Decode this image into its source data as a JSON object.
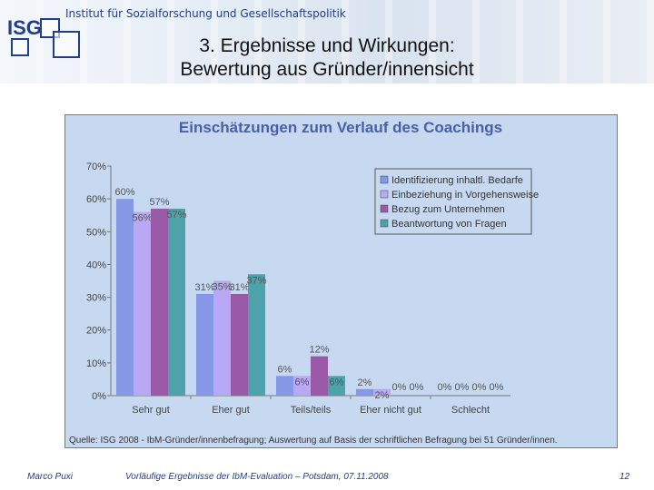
{
  "header": {
    "logo": "ISG",
    "institute": "Institut für Sozialforschung und Gesellschaftspolitik",
    "title_line1": "3. Ergebnisse und Wirkungen:",
    "title_line2": "Bewertung aus Gründer/innensicht"
  },
  "chart_data": {
    "type": "bar",
    "title": "Einschätzungen zum Verlauf des Coachings",
    "categories": [
      "Sehr gut",
      "Eher gut",
      "Teils/teils",
      "Eher nicht gut",
      "Schlecht"
    ],
    "series": [
      {
        "name": "Identifizierung inhaltl. Bedarfe",
        "values": [
          60,
          31,
          6,
          2,
          0
        ],
        "color": "#8797e8"
      },
      {
        "name": "Einbeziehung in Vorgehensweise",
        "values": [
          56,
          35,
          6,
          2,
          0
        ],
        "color": "#b9a8f4"
      },
      {
        "name": "Bezug zum Unternehmen",
        "values": [
          57,
          31,
          12,
          0,
          0
        ],
        "color": "#9b5aa8"
      },
      {
        "name": "Beantwortung von Fragen",
        "values": [
          57,
          37,
          6,
          0,
          0
        ],
        "color": "#4ea2aa"
      }
    ],
    "ylim": [
      0,
      70
    ],
    "yticks": [
      "0%",
      "10%",
      "20%",
      "30%",
      "40%",
      "50%",
      "60%",
      "70%"
    ],
    "value_suffix": "%",
    "legend_position": "top-right",
    "source": "Quelle: ISG 2008 - IbM-Gründer/innenbefragung; Auswertung auf Basis der schriftlichen Befragung bei 51 Gründer/innen."
  },
  "footer": {
    "author": "Marco Puxi",
    "caption": "Vorläufige Ergebnisse der IbM-Evaluation – Potsdam, 07.11.2008",
    "page": "12"
  }
}
